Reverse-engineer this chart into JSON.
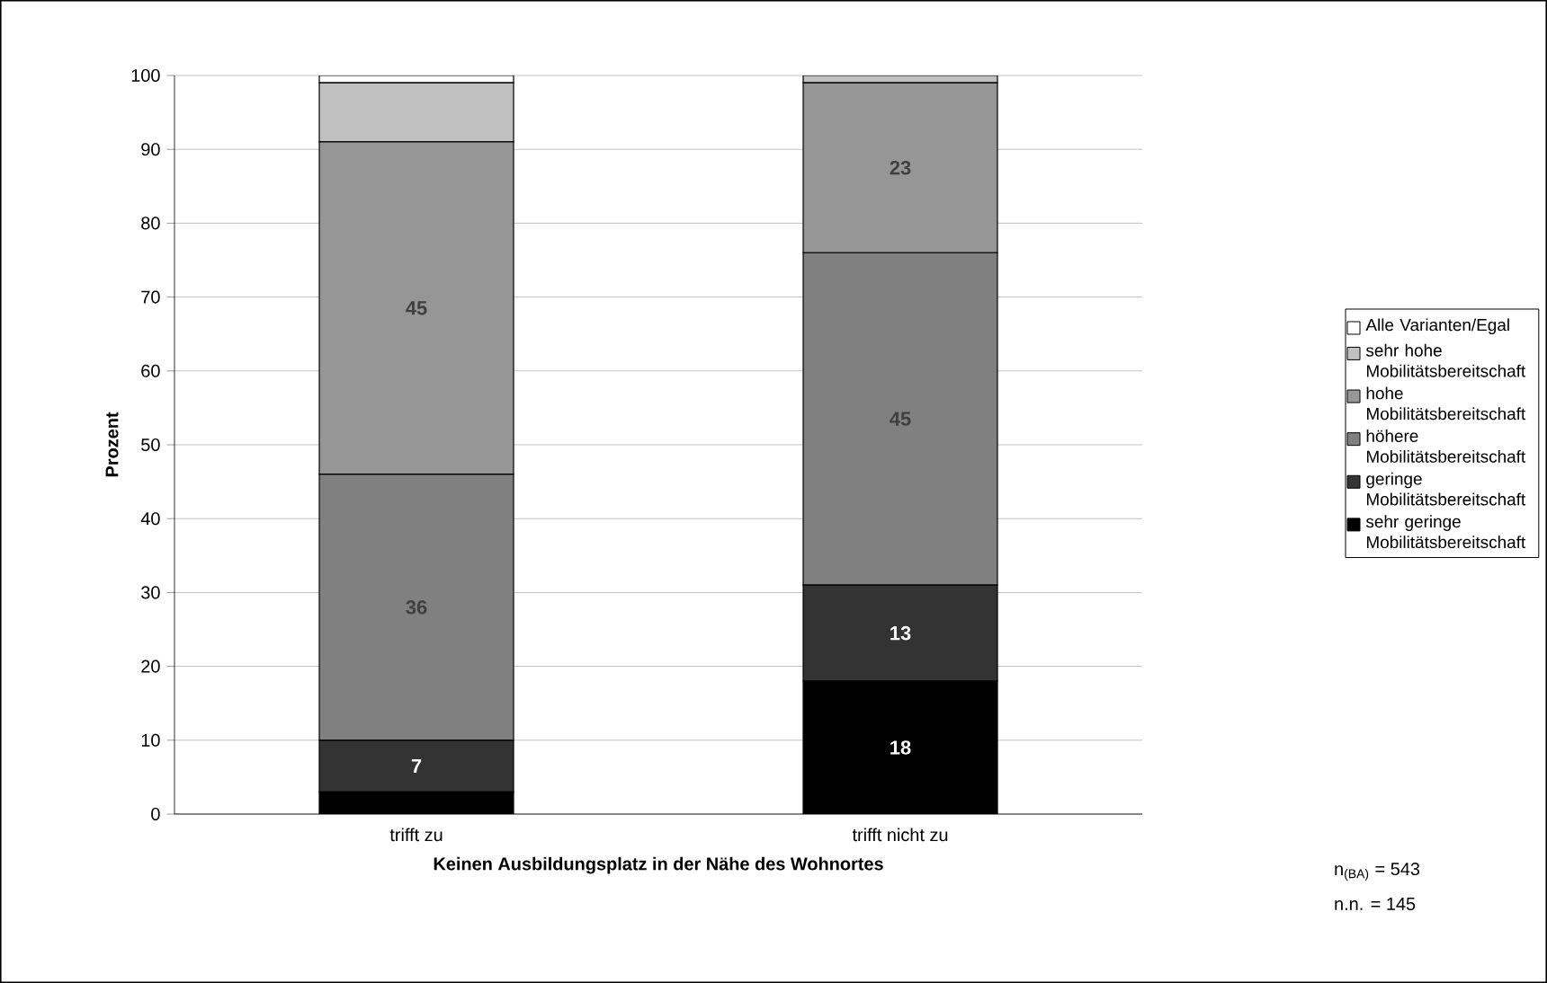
{
  "chart_data": {
    "type": "bar",
    "stacked": true,
    "categories": [
      "trifft zu",
      "trifft nicht zu"
    ],
    "xlabel": "Keinen Ausbildungsplatz in der Nähe des Wohnortes",
    "ylabel": "Prozent",
    "ylim": [
      0,
      100
    ],
    "yticks": [
      0,
      10,
      20,
      30,
      40,
      50,
      60,
      70,
      80,
      90,
      100
    ],
    "grid": "y",
    "legend": "right",
    "series": [
      {
        "name": "sehr geringe Mobilitätsbereitschaft",
        "color": "#000000",
        "values": [
          3,
          18
        ],
        "value_labels": [
          null,
          "18"
        ]
      },
      {
        "name": "geringe Mobilitätsbereitschaft",
        "color": "#333333",
        "values": [
          7,
          13
        ],
        "value_labels": [
          "7",
          "13"
        ]
      },
      {
        "name": "höhere Mobilitätsbereitschaft",
        "color": "#808080",
        "values": [
          36,
          45
        ],
        "value_labels": [
          "36",
          "45"
        ]
      },
      {
        "name": "hohe Mobilitätsbereitschaft",
        "color": "#969696",
        "values": [
          45,
          23
        ],
        "value_labels": [
          "45",
          "23"
        ]
      },
      {
        "name": "sehr hohe Mobilitätsbereitschaft",
        "color": "#c0c0c0",
        "values": [
          8,
          1
        ],
        "value_labels": [
          null,
          null
        ]
      },
      {
        "name": "Alle Varianten/Egal",
        "color": "#ffffff",
        "values": [
          1,
          null
        ],
        "value_labels": [
          null,
          null
        ]
      }
    ],
    "annotations": [
      "n$_{(BA)}$ = 543",
      "n.n. = 145"
    ]
  }
}
